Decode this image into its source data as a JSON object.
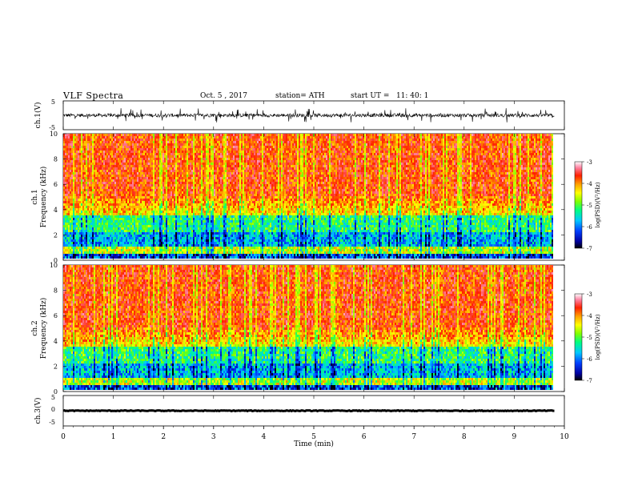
{
  "header": {
    "title": "VLF Spectra",
    "date": "Oct. 5 , 2017",
    "station": "station= ATH",
    "start_ut": "start UT =   11: 40: 1"
  },
  "chart_data": [
    {
      "type": "line",
      "panel": "ch1-waveform",
      "ylabel": "ch.1(V)",
      "ylim": [
        -5,
        5
      ],
      "yticks": [
        "5",
        "-5"
      ],
      "xlim": [
        0,
        10
      ],
      "noise_amplitude_V": 0.6,
      "spike_amplitude_V": 2.5
    },
    {
      "type": "heatmap",
      "panel": "ch1-spectrogram",
      "ylabel_line1": "ch.1",
      "ylabel_line2": "Frequency (kHz)",
      "ylim": [
        0,
        10
      ],
      "yticks": [
        "0",
        "2",
        "4",
        "6",
        "8",
        "10"
      ],
      "data_end_min": 9.8,
      "colorbar": {
        "label": "log(PSD)(V²/Hz)",
        "range": [
          -7,
          -3
        ],
        "ticks": [
          "-3",
          "-4",
          "-5",
          "-6",
          "-7"
        ],
        "colors": [
          "#000000",
          "#0000a0",
          "#0040ff",
          "#00c8ff",
          "#00ff80",
          "#80ff00",
          "#ffff00",
          "#ffa000",
          "#ff2000",
          "#ff80a0",
          "#ffffff"
        ]
      }
    },
    {
      "type": "heatmap",
      "panel": "ch2-spectrogram",
      "ylabel_line1": "ch.2",
      "ylabel_line2": "Frequency (kHz)",
      "ylim": [
        0,
        10
      ],
      "yticks": [
        "0",
        "2",
        "4",
        "6",
        "8",
        "10"
      ],
      "data_end_min": 9.8,
      "colorbar": {
        "label": "log(PSD)(V²/Hz)",
        "range": [
          -7,
          -3
        ],
        "ticks": [
          "-3",
          "-4",
          "-5",
          "-6",
          "-7"
        ]
      }
    },
    {
      "type": "line",
      "panel": "ch3-waveform",
      "ylabel": "ch.3(V)",
      "ylim": [
        -5,
        5
      ],
      "yticks": [
        "5",
        "0",
        "-5"
      ],
      "xlim": [
        0,
        10
      ],
      "baseline_V": 0
    }
  ],
  "xaxis": {
    "label": "Time (min)",
    "ticks": [
      "0",
      "1",
      "2",
      "3",
      "4",
      "5",
      "6",
      "7",
      "8",
      "9",
      "10"
    ]
  }
}
